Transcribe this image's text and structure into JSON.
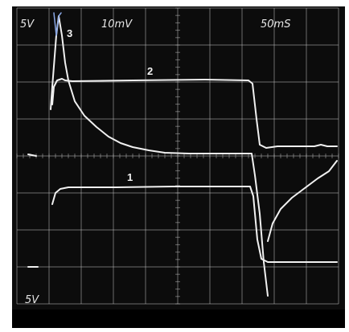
{
  "screen": {
    "ch1_volts_div": "5V",
    "ch2_volts_div": "10mV",
    "time_div": "50mS",
    "ch3_volts_div": "5V"
  },
  "trace_labels": {
    "t1": "1",
    "t2": "2",
    "t3": "3"
  },
  "colors": {
    "background": "#0c0c0c",
    "grid": "#bdbdbd",
    "trace": "#f0f0f0",
    "trace3_spike": "#8aa8e6"
  }
}
